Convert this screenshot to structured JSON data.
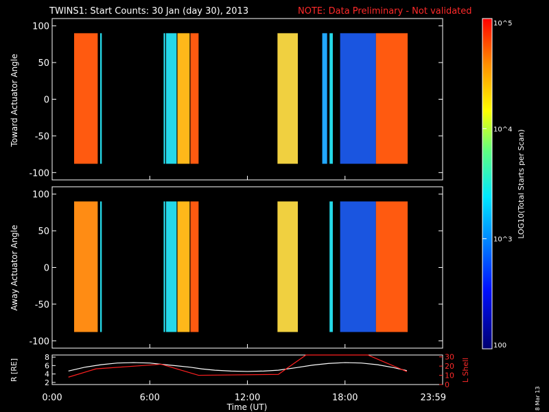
{
  "header": {
    "title": "TWINS1: Start Counts: 30 Jan (day  30), 2013",
    "note": "NOTE: Data Preliminary - Not validated"
  },
  "stamp": "8 Mar 13",
  "colorbar": {
    "label": "LOG10(Total Starts per Scan)",
    "ticks": [
      "10^5",
      "10^4",
      "10^3",
      "100"
    ]
  },
  "panels": {
    "toward": {
      "ylabel": "Toward Actuator Angle",
      "ticks": [
        "100",
        "50",
        "0",
        "-50",
        "-100"
      ]
    },
    "away": {
      "ylabel": "Away Actuator Angle",
      "ticks": [
        "100",
        "50",
        "0",
        "-50",
        "-100"
      ]
    },
    "orbit": {
      "ylabel_left": "R [RE]",
      "ylabel_right": "L Shell",
      "left_ticks": [
        "8",
        "6",
        "4",
        "2"
      ],
      "right_ticks": [
        "30",
        "20",
        "10",
        "0"
      ]
    }
  },
  "xaxis": {
    "label": "Time (UT)",
    "ticks": [
      "0:00",
      "6:00",
      "12:00",
      "18:00",
      "23:59"
    ]
  },
  "chart_data": [
    {
      "type": "heatmap",
      "title": "Toward Actuator Angle",
      "x_unit": "hours UT",
      "xlim": [
        0,
        24
      ],
      "ylim": [
        -110,
        110
      ],
      "color_scale": "log",
      "color_range": [
        100,
        100000
      ],
      "y_extent": [
        -88,
        90
      ],
      "blocks": [
        {
          "x": [
            1.35,
            2.8
          ],
          "level": "orange-red"
        },
        {
          "x": [
            2.95,
            3.05
          ],
          "level": "cyan"
        },
        {
          "x": [
            6.85,
            6.95
          ],
          "level": "cyan"
        },
        {
          "x": [
            7.0,
            7.65
          ],
          "level": "cyan"
        },
        {
          "x": [
            7.7,
            8.45
          ],
          "level": "yellow-orange"
        },
        {
          "x": [
            8.5,
            9.0
          ],
          "level": "orange-red"
        },
        {
          "x": [
            13.85,
            15.1
          ],
          "level": "yellow-cyan"
        },
        {
          "x": [
            16.6,
            16.9
          ],
          "level": "blue-cyan"
        },
        {
          "x": [
            17.05,
            17.25
          ],
          "level": "cyan"
        },
        {
          "x": [
            17.7,
            19.9
          ],
          "level": "blue"
        },
        {
          "x": [
            19.9,
            21.85
          ],
          "level": "orange-red"
        }
      ]
    },
    {
      "type": "heatmap",
      "title": "Away Actuator Angle",
      "x_unit": "hours UT",
      "xlim": [
        0,
        24
      ],
      "ylim": [
        -110,
        110
      ],
      "color_scale": "log",
      "color_range": [
        100,
        100000
      ],
      "y_extent": [
        -88,
        90
      ],
      "blocks": [
        {
          "x": [
            1.35,
            2.8
          ],
          "level": "orange-yellow"
        },
        {
          "x": [
            2.95,
            3.05
          ],
          "level": "cyan"
        },
        {
          "x": [
            6.85,
            6.95
          ],
          "level": "cyan"
        },
        {
          "x": [
            7.0,
            7.65
          ],
          "level": "cyan"
        },
        {
          "x": [
            7.7,
            8.45
          ],
          "level": "yellow-orange"
        },
        {
          "x": [
            8.5,
            9.0
          ],
          "level": "orange-red"
        },
        {
          "x": [
            13.85,
            15.1
          ],
          "level": "yellow-cyan"
        },
        {
          "x": [
            17.05,
            17.25
          ],
          "level": "cyan"
        },
        {
          "x": [
            17.7,
            19.9
          ],
          "level": "blue"
        },
        {
          "x": [
            19.9,
            21.85
          ],
          "level": "orange-red"
        }
      ]
    },
    {
      "type": "line",
      "x_unit": "hours UT",
      "xlim": [
        0,
        24
      ],
      "series": [
        {
          "axis": "left",
          "ylim": [
            1.5,
            8.5
          ],
          "color": "#ffffff",
          "x": [
            1.0,
            2.0,
            3.0,
            4.0,
            5.0,
            6.0,
            6.7,
            7.5,
            8.5,
            9.2,
            10.0,
            11.0,
            12.0,
            13.0,
            13.9,
            15.0,
            16.0,
            17.0,
            18.0,
            19.0,
            20.0,
            21.0,
            21.8
          ],
          "y": [
            4.7,
            5.6,
            6.2,
            6.6,
            6.7,
            6.6,
            6.3,
            6.0,
            5.6,
            5.2,
            4.9,
            4.7,
            4.6,
            4.7,
            4.9,
            5.5,
            6.1,
            6.5,
            6.7,
            6.6,
            6.2,
            5.5,
            4.8
          ]
        },
        {
          "axis": "right",
          "ylim": [
            0,
            32
          ],
          "color": "#ff2020",
          "x": [
            1.0,
            2.7,
            6.7,
            9.0,
            13.9,
            15.6,
            19.4,
            21.8
          ],
          "y": [
            8,
            17,
            22,
            10,
            11,
            32,
            32,
            14
          ]
        }
      ]
    }
  ],
  "colors": {
    "blocks": {
      "blue": "#1a55e0",
      "blue-cyan": "#22a8ff",
      "cyan": "#25d8e8",
      "yellow-cyan": "#f0d040",
      "yellow-orange": "#ffb81a",
      "orange-red": "#ff5a10",
      "orange-yellow": "#ff8c14"
    }
  }
}
